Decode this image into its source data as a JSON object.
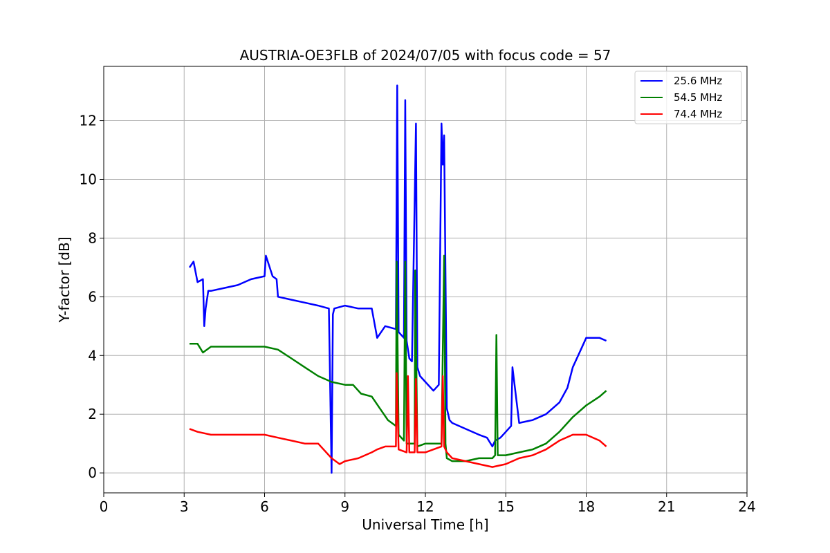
{
  "chart_data": {
    "type": "line",
    "title": "AUSTRIA-OE3FLB of 2024/07/05 with focus code = 57",
    "xlabel": "Universal Time [h]",
    "ylabel": "Y-factor [dB]",
    "xlim": [
      0,
      24
    ],
    "ylim": [
      -0.68,
      13.85
    ],
    "xticks": [
      0,
      3,
      6,
      9,
      12,
      15,
      18,
      21,
      24
    ],
    "yticks": [
      0,
      2,
      4,
      6,
      8,
      10,
      12
    ],
    "grid": true,
    "legend_position": "top-right",
    "series": [
      {
        "name": "25.6 MHz",
        "color": "#0000ff",
        "x": [
          3.2,
          3.35,
          3.5,
          3.7,
          3.75,
          3.8,
          3.9,
          4.0,
          4.5,
          5.0,
          5.5,
          6.0,
          6.05,
          6.3,
          6.45,
          6.5,
          7.0,
          7.5,
          8.0,
          8.4,
          8.5,
          8.55,
          8.6,
          9.0,
          9.5,
          10.0,
          10.2,
          10.5,
          10.9,
          10.95,
          11.0,
          11.2,
          11.25,
          11.3,
          11.4,
          11.5,
          11.65,
          11.7,
          11.8,
          12.0,
          12.3,
          12.5,
          12.6,
          12.65,
          12.7,
          12.8,
          12.9,
          13.0,
          13.5,
          14.0,
          14.3,
          14.5,
          14.6,
          14.8,
          15.0,
          15.2,
          15.25,
          15.5,
          16.0,
          16.5,
          17.0,
          17.3,
          17.5,
          17.8,
          18.0,
          18.3,
          18.5,
          18.75
        ],
        "values": [
          7.0,
          7.2,
          6.5,
          6.6,
          5.0,
          5.6,
          6.2,
          6.2,
          6.3,
          6.4,
          6.6,
          6.7,
          7.4,
          6.7,
          6.6,
          6.0,
          5.9,
          5.8,
          5.7,
          5.6,
          0.0,
          5.4,
          5.6,
          5.7,
          5.6,
          5.6,
          4.6,
          5.0,
          4.9,
          13.2,
          4.8,
          4.6,
          12.7,
          4.5,
          3.9,
          3.8,
          11.9,
          3.6,
          3.3,
          3.1,
          2.8,
          3.0,
          11.9,
          10.5,
          11.5,
          2.2,
          1.8,
          1.7,
          1.5,
          1.3,
          1.2,
          0.9,
          1.1,
          1.2,
          1.4,
          1.6,
          3.6,
          1.7,
          1.8,
          2.0,
          2.4,
          2.9,
          3.6,
          4.2,
          4.6,
          4.6,
          4.6,
          4.5
        ]
      },
      {
        "name": "54.5 MHz",
        "color": "#008000",
        "x": [
          3.2,
          3.5,
          3.7,
          4.0,
          5.0,
          6.0,
          6.5,
          7.0,
          7.5,
          8.0,
          8.5,
          9.0,
          9.3,
          9.6,
          10.0,
          10.3,
          10.6,
          10.9,
          10.93,
          11.0,
          11.2,
          11.25,
          11.3,
          11.6,
          11.62,
          11.7,
          12.0,
          12.3,
          12.6,
          12.7,
          12.75,
          12.8,
          13.0,
          13.5,
          14.0,
          14.5,
          14.6,
          14.65,
          14.7,
          15.0,
          15.5,
          16.0,
          16.5,
          17.0,
          17.5,
          18.0,
          18.5,
          18.75
        ],
        "values": [
          4.4,
          4.4,
          4.1,
          4.3,
          4.3,
          4.3,
          4.2,
          3.9,
          3.6,
          3.3,
          3.1,
          3.0,
          3.0,
          2.7,
          2.6,
          2.2,
          1.8,
          1.6,
          7.2,
          1.3,
          1.1,
          7.2,
          1.0,
          1.0,
          6.9,
          0.9,
          1.0,
          1.0,
          1.0,
          7.4,
          1.0,
          0.5,
          0.4,
          0.4,
          0.5,
          0.5,
          0.6,
          4.7,
          0.6,
          0.6,
          0.7,
          0.8,
          1.0,
          1.4,
          1.9,
          2.3,
          2.6,
          2.8
        ]
      },
      {
        "name": "74.4 MHz",
        "color": "#ff0000",
        "x": [
          3.2,
          3.5,
          4.0,
          5.0,
          6.0,
          6.5,
          7.0,
          7.5,
          8.0,
          8.5,
          8.8,
          9.0,
          9.5,
          10.0,
          10.2,
          10.5,
          10.9,
          10.93,
          11.0,
          11.3,
          11.35,
          11.4,
          11.6,
          11.65,
          11.7,
          12.0,
          12.3,
          12.6,
          12.65,
          12.7,
          12.8,
          13.0,
          13.5,
          14.0,
          14.5,
          15.0,
          15.5,
          16.0,
          16.5,
          17.0,
          17.5,
          18.0,
          18.5,
          18.75
        ],
        "values": [
          1.5,
          1.4,
          1.3,
          1.3,
          1.3,
          1.2,
          1.1,
          1.0,
          1.0,
          0.5,
          0.3,
          0.4,
          0.5,
          0.7,
          0.8,
          0.9,
          0.9,
          3.4,
          0.8,
          0.7,
          3.3,
          0.7,
          0.7,
          3.2,
          0.7,
          0.7,
          0.8,
          0.9,
          3.3,
          0.9,
          0.7,
          0.5,
          0.4,
          0.3,
          0.2,
          0.3,
          0.5,
          0.6,
          0.8,
          1.1,
          1.3,
          1.3,
          1.1,
          0.9
        ]
      }
    ]
  }
}
